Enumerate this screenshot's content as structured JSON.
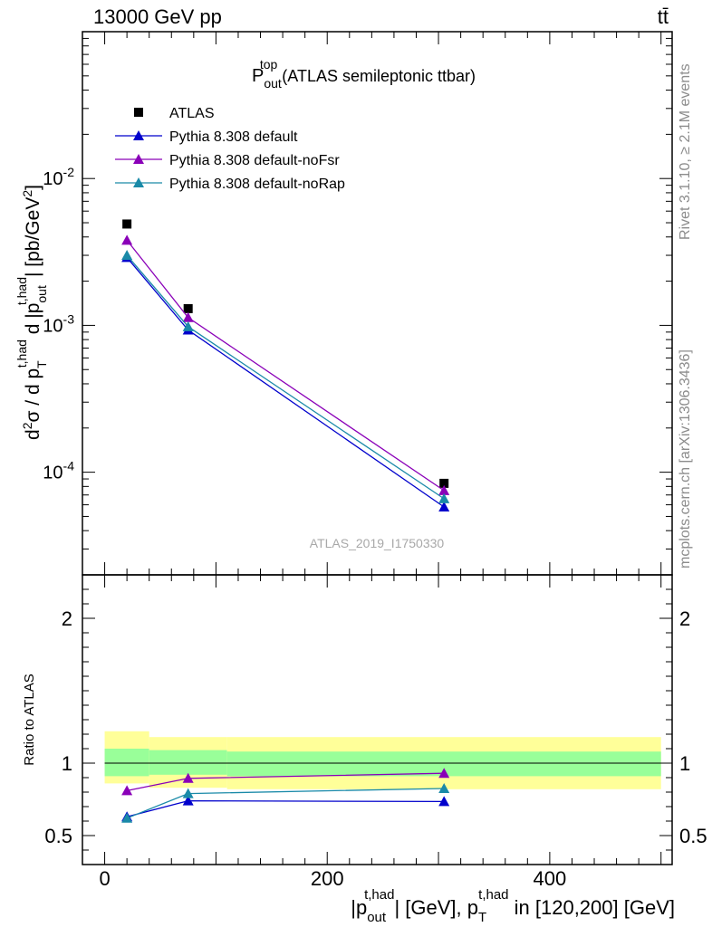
{
  "header": {
    "energy": "13000 GeV pp",
    "process": "tt̄"
  },
  "side_labels": {
    "rivet": "Rivet 3.1.10, ≥ 2.1M events",
    "mcplots": "mcplots.cern.ch [arXiv:1306.3436]"
  },
  "watermark": "ATLAS_2019_I1750330",
  "colors": {
    "atlas": "#000000",
    "default": "#0000cc",
    "noFsr": "#8a00b8",
    "noRap": "#1a8aa8",
    "band_outer": "#ffff99",
    "band_inner": "#99ff99"
  },
  "chart_data": [
    {
      "type": "scatter",
      "title": {
        "main": "P",
        "sup": "top",
        "sub": "out",
        "rest": " (ATLAS semileptonic ttbar)"
      },
      "ylabel": "d²σ / d p_T^{t,had} d |p_out^{t,had}| [pb/GeV²]",
      "yscale": "log",
      "ylim": [
        2e-05,
        0.1
      ],
      "xlim": [
        -20,
        510
      ],
      "ytick_labels": [
        "10^-2",
        "10^-3",
        "10^-4"
      ],
      "x": [
        20,
        75,
        305
      ],
      "series": [
        {
          "name": "ATLAS",
          "marker": "square",
          "values": [
            0.0049,
            0.0013,
            8.4e-05
          ]
        },
        {
          "name": "Pythia 8.308 default",
          "marker": "triangle",
          "values": [
            0.0029,
            0.00093,
            5.8e-05
          ]
        },
        {
          "name": "Pythia 8.308 default-noFsr",
          "marker": "triangle",
          "values": [
            0.0038,
            0.00113,
            7.5e-05
          ]
        },
        {
          "name": "Pythia 8.308 default-noRap",
          "marker": "triangle",
          "values": [
            0.003,
            0.00098,
            6.6e-05
          ]
        }
      ],
      "legend_position": "top-left"
    },
    {
      "type": "line",
      "ylabel": "Ratio to ATLAS",
      "xlabel": "|p_out^{t,had}| [GeV], p_T^{t,had} in [120,200] [GeV]",
      "ylim": [
        0.3,
        2.3
      ],
      "xlim": [
        -20,
        510
      ],
      "x_tick_labels": [
        "0",
        "200",
        "400"
      ],
      "y_tick_labels": [
        "0.5",
        "1",
        "2"
      ],
      "bins": [
        [
          0,
          40
        ],
        [
          40,
          110
        ],
        [
          110,
          500
        ]
      ],
      "band_outer": [
        [
          0.86,
          1.22
        ],
        [
          0.83,
          1.18
        ],
        [
          0.82,
          1.18
        ]
      ],
      "band_inner": [
        [
          0.91,
          1.1
        ],
        [
          0.92,
          1.09
        ],
        [
          0.91,
          1.08
        ]
      ],
      "x": [
        20,
        75,
        305
      ],
      "series": [
        {
          "name": "Pythia 8.308 default",
          "values": [
            0.63,
            0.74,
            0.735
          ]
        },
        {
          "name": "Pythia 8.308 default-noFsr",
          "values": [
            0.81,
            0.895,
            0.93
          ]
        },
        {
          "name": "Pythia 8.308 default-noRap",
          "values": [
            0.62,
            0.79,
            0.825
          ]
        }
      ]
    }
  ]
}
